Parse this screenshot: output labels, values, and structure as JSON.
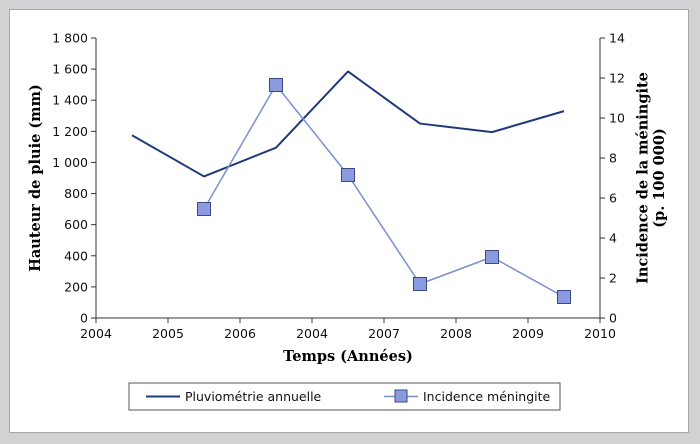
{
  "chart_data": {
    "type": "line",
    "xlabel": "Temps (Années)",
    "ylabel_left": "Hauteur de pluie (mm)",
    "ylabel_right": "Incidence de la méningite (p. 100 000)",
    "categories": [
      "2004",
      "2005",
      "2006",
      "2004",
      "2007",
      "2008",
      "2009",
      "2010"
    ],
    "y_left_ticks": [
      "0",
      "200",
      "400",
      "600",
      "800",
      "1 000",
      "1 200",
      "1 400",
      "1 600",
      "1 800"
    ],
    "y_right_ticks": [
      "0",
      "2",
      "4",
      "6",
      "8",
      "10",
      "12",
      "14"
    ],
    "ylim_left": [
      0,
      1800
    ],
    "ylim_right": [
      0,
      14
    ],
    "grid": false,
    "legend_position": "bottom",
    "series": [
      {
        "name": "Pluviométrie annuelle",
        "axis": "left",
        "color": "#1f3a7a",
        "marker": "none",
        "x": [
          0.5,
          1.5,
          2.5,
          3.5,
          4.5,
          5.5,
          6.5
        ],
        "values": [
          1175,
          910,
          1095,
          1585,
          1250,
          1195,
          1330
        ]
      },
      {
        "name": "Incidence méningite",
        "axis": "right",
        "color": "#7a8fd0",
        "marker_fill": "#8c9be0",
        "marker": "square",
        "x": [
          1.5,
          2.5,
          3.5,
          4.5,
          5.5,
          6.5
        ],
        "values": [
          5.45,
          11.65,
          7.15,
          1.7,
          3.05,
          1.05
        ]
      }
    ]
  }
}
